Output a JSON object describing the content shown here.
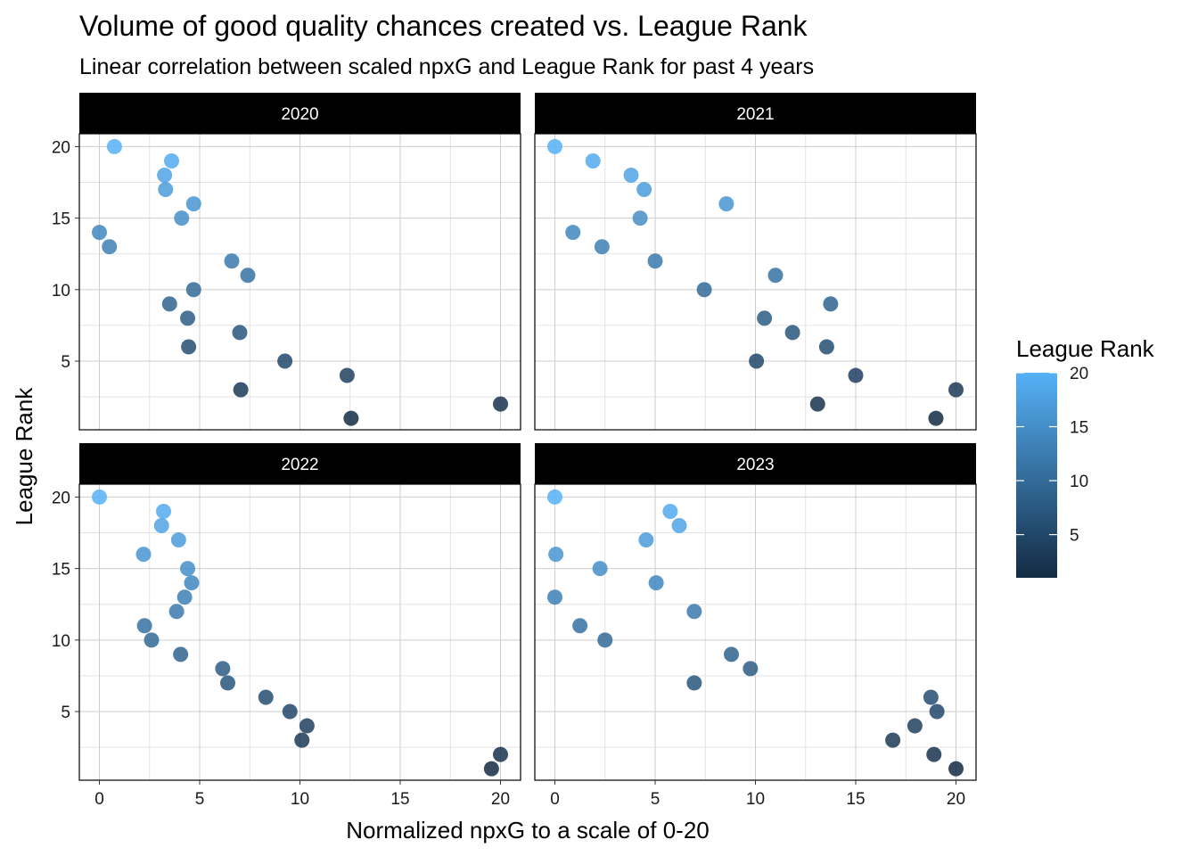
{
  "chart_data": {
    "type": "scatter",
    "title": "Volume of good quality chances created vs. League Rank",
    "subtitle": "Linear correlation between scaled npxG and League Rank for past 4 years",
    "xlabel": "Normalized npxG to a scale of 0-20",
    "ylabel": "League Rank",
    "xlim": [
      -1,
      21
    ],
    "ylim": [
      0.2,
      20.9
    ],
    "x_ticks": [
      0,
      5,
      10,
      15,
      20
    ],
    "y_ticks": [
      5,
      10,
      15,
      20
    ],
    "grid": true,
    "color_scale": {
      "low": "#132B43",
      "high": "#56B1F7",
      "min": 1,
      "max": 20
    },
    "legend": {
      "title": "League Rank",
      "position": "right",
      "ticks": [
        5,
        10,
        15,
        20
      ]
    },
    "panels": [
      {
        "label": "2020",
        "points": [
          {
            "x": 0.75,
            "y": 20
          },
          {
            "x": 3.6,
            "y": 19
          },
          {
            "x": 3.25,
            "y": 18
          },
          {
            "x": 3.3,
            "y": 17
          },
          {
            "x": 4.7,
            "y": 16
          },
          {
            "x": 4.1,
            "y": 15
          },
          {
            "x": 0.0,
            "y": 14
          },
          {
            "x": 0.5,
            "y": 13
          },
          {
            "x": 6.6,
            "y": 12
          },
          {
            "x": 7.4,
            "y": 11
          },
          {
            "x": 4.7,
            "y": 10
          },
          {
            "x": 3.5,
            "y": 9
          },
          {
            "x": 4.4,
            "y": 8
          },
          {
            "x": 7.0,
            "y": 7
          },
          {
            "x": 4.45,
            "y": 6
          },
          {
            "x": 9.25,
            "y": 5
          },
          {
            "x": 12.35,
            "y": 4
          },
          {
            "x": 7.05,
            "y": 3
          },
          {
            "x": 20.0,
            "y": 2
          },
          {
            "x": 12.55,
            "y": 1
          }
        ]
      },
      {
        "label": "2021",
        "points": [
          {
            "x": 0.0,
            "y": 20
          },
          {
            "x": 1.9,
            "y": 19
          },
          {
            "x": 3.8,
            "y": 18
          },
          {
            "x": 4.45,
            "y": 17
          },
          {
            "x": 8.55,
            "y": 16
          },
          {
            "x": 4.25,
            "y": 15
          },
          {
            "x": 0.9,
            "y": 14
          },
          {
            "x": 2.35,
            "y": 13
          },
          {
            "x": 5.0,
            "y": 12
          },
          {
            "x": 11.0,
            "y": 11
          },
          {
            "x": 7.45,
            "y": 10
          },
          {
            "x": 13.75,
            "y": 9
          },
          {
            "x": 10.45,
            "y": 8
          },
          {
            "x": 11.85,
            "y": 7
          },
          {
            "x": 13.55,
            "y": 6
          },
          {
            "x": 10.05,
            "y": 5
          },
          {
            "x": 15.0,
            "y": 4
          },
          {
            "x": 20.0,
            "y": 3
          },
          {
            "x": 13.1,
            "y": 2
          },
          {
            "x": 19.0,
            "y": 1
          }
        ]
      },
      {
        "label": "2022",
        "points": [
          {
            "x": 0.0,
            "y": 20
          },
          {
            "x": 3.2,
            "y": 19
          },
          {
            "x": 3.1,
            "y": 18
          },
          {
            "x": 3.95,
            "y": 17
          },
          {
            "x": 2.2,
            "y": 16
          },
          {
            "x": 4.4,
            "y": 15
          },
          {
            "x": 4.6,
            "y": 14
          },
          {
            "x": 4.25,
            "y": 13
          },
          {
            "x": 3.85,
            "y": 12
          },
          {
            "x": 2.25,
            "y": 11
          },
          {
            "x": 2.6,
            "y": 10
          },
          {
            "x": 4.05,
            "y": 9
          },
          {
            "x": 6.15,
            "y": 8
          },
          {
            "x": 6.4,
            "y": 7
          },
          {
            "x": 8.3,
            "y": 6
          },
          {
            "x": 9.5,
            "y": 5
          },
          {
            "x": 10.35,
            "y": 4
          },
          {
            "x": 10.1,
            "y": 3
          },
          {
            "x": 20.0,
            "y": 2
          },
          {
            "x": 19.55,
            "y": 1
          }
        ]
      },
      {
        "label": "2023",
        "points": [
          {
            "x": 0.0,
            "y": 20
          },
          {
            "x": 5.75,
            "y": 19
          },
          {
            "x": 6.2,
            "y": 18
          },
          {
            "x": 4.55,
            "y": 17
          },
          {
            "x": 0.05,
            "y": 16
          },
          {
            "x": 2.25,
            "y": 15
          },
          {
            "x": 5.05,
            "y": 14
          },
          {
            "x": 0.0,
            "y": 13
          },
          {
            "x": 6.95,
            "y": 12
          },
          {
            "x": 1.25,
            "y": 11
          },
          {
            "x": 2.5,
            "y": 10
          },
          {
            "x": 8.8,
            "y": 9
          },
          {
            "x": 9.75,
            "y": 8
          },
          {
            "x": 6.95,
            "y": 7
          },
          {
            "x": 18.75,
            "y": 6
          },
          {
            "x": 19.05,
            "y": 5
          },
          {
            "x": 17.95,
            "y": 4
          },
          {
            "x": 16.85,
            "y": 3
          },
          {
            "x": 18.9,
            "y": 2
          },
          {
            "x": 20.0,
            "y": 1
          }
        ]
      }
    ]
  }
}
